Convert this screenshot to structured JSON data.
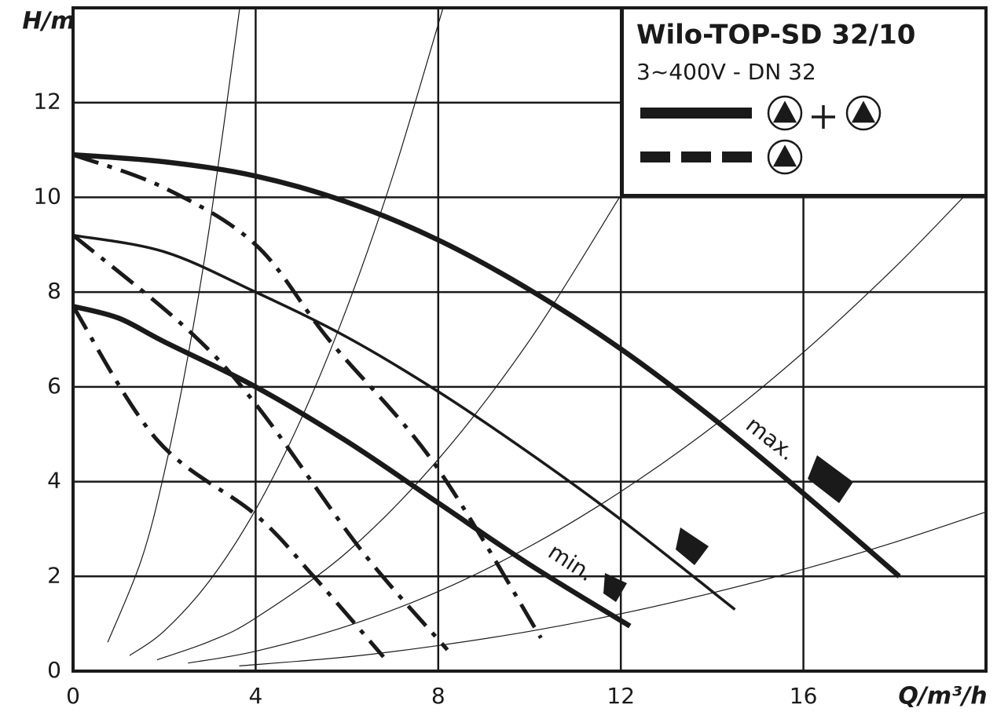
{
  "chart_data": {
    "type": "line",
    "xlabel": "Q/m³/h",
    "ylabel": "H/m",
    "xlim": [
      0,
      20
    ],
    "ylim": [
      0,
      14
    ],
    "xticks": [
      0,
      4,
      8,
      12,
      16
    ],
    "yticks": [
      0,
      2,
      4,
      6,
      8,
      10,
      12
    ],
    "grid": true,
    "color": "#1a1a1a",
    "legend": {
      "title": "Wilo-TOP-SD 32/10",
      "subtitle": "3~400V - DN 32"
    },
    "annotations": [
      "max.",
      "min."
    ],
    "series": [
      {
        "style": "thick",
        "x": [
          0,
          2,
          4,
          6,
          8,
          10,
          12,
          14,
          16,
          18.1
        ],
        "values": [
          10.9,
          10.75,
          10.45,
          9.9,
          9.1,
          8.05,
          6.8,
          5.35,
          3.75,
          2.0
        ]
      },
      {
        "style": "medium",
        "x": [
          0,
          2,
          4,
          6,
          8,
          10,
          12,
          14.5
        ],
        "values": [
          9.2,
          8.85,
          8.0,
          7.05,
          5.9,
          4.6,
          3.2,
          1.3
        ]
      },
      {
        "style": "thick",
        "x": [
          0,
          1,
          2,
          4,
          6,
          8,
          10,
          12.2
        ],
        "values": [
          7.7,
          7.45,
          6.95,
          6.0,
          4.85,
          3.55,
          2.25,
          0.95
        ]
      },
      {
        "style": "dashdot",
        "x": [
          0,
          2,
          4,
          5.6,
          7.9,
          10.25
        ],
        "values": [
          10.9,
          10.2,
          9.0,
          7.0,
          4.4,
          0.7
        ]
      },
      {
        "style": "dashdot",
        "x": [
          0,
          2.52,
          4.07,
          6.3,
          8.2
        ],
        "values": [
          9.2,
          7.2,
          5.55,
          2.57,
          0.45
        ]
      },
      {
        "style": "dashdot",
        "x": [
          0,
          1.84,
          4,
          5.27,
          6.8
        ],
        "values": [
          7.7,
          4.88,
          3.3,
          2.0,
          0.3
        ]
      },
      {
        "style": "thin",
        "x": [
          0.76,
          1.5,
          2,
          2.5,
          3,
          3.65
        ],
        "values": [
          0.61,
          2.36,
          4.2,
          6.56,
          9.45,
          13.99
        ]
      },
      {
        "style": "thin",
        "x": [
          1.24,
          2,
          3,
          4,
          5,
          6,
          7,
          8.1
        ],
        "values": [
          0.33,
          0.85,
          1.92,
          3.41,
          5.33,
          7.67,
          10.44,
          13.98
        ]
      },
      {
        "style": "thin",
        "x": [
          1.84,
          3,
          4,
          6,
          8,
          10,
          11.97
        ],
        "values": [
          0.24,
          0.63,
          1.12,
          2.51,
          4.47,
          6.98,
          10.0
        ]
      },
      {
        "style": "thin",
        "x": [
          2.52,
          4,
          6,
          8,
          10,
          12,
          14,
          16,
          18,
          19.5
        ],
        "values": [
          0.17,
          0.42,
          0.95,
          1.68,
          2.63,
          3.79,
          5.15,
          6.73,
          8.52,
          10.0
        ]
      },
      {
        "style": "thin",
        "x": [
          3.64,
          6,
          8,
          10,
          12,
          14,
          16,
          18,
          20
        ],
        "values": [
          0.11,
          0.3,
          0.54,
          0.84,
          1.21,
          1.65,
          2.15,
          2.72,
          3.36
        ]
      }
    ]
  }
}
